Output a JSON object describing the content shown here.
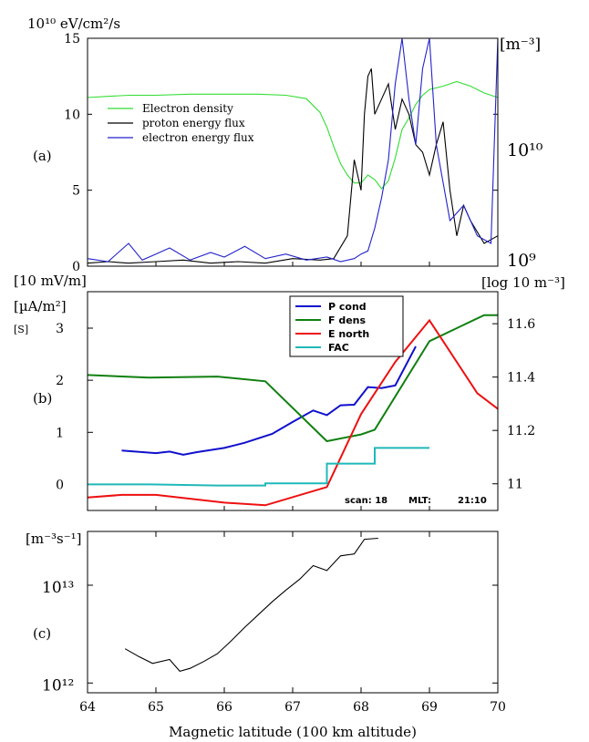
{
  "chart_data": [
    {
      "panel_label": "(a)",
      "type": "line",
      "y_unit_left": "10¹⁰ eV/cm²/s",
      "y_unit_right": "[m⁻³]",
      "ylim_left": [
        0,
        15
      ],
      "yticks_left": [
        "0",
        "5",
        "10",
        "15"
      ],
      "yticks_right": [
        "10⁹",
        "10¹⁰"
      ],
      "ylim_right_log": [
        9,
        11
      ],
      "xlim": [
        64,
        70
      ],
      "legend": [
        "Electron density",
        "proton energy flux",
        "electron energy flux"
      ],
      "series": [
        {
          "name": "Electron density",
          "color": "#33dd33",
          "axis": "right_log",
          "x": [
            64.0,
            64.3,
            64.6,
            65.0,
            65.5,
            66.0,
            66.5,
            66.9,
            67.2,
            67.4,
            67.5,
            67.6,
            67.7,
            67.8,
            67.9,
            68.0,
            68.1,
            68.2,
            68.3,
            68.4,
            68.5,
            68.6,
            68.7,
            68.8,
            68.9,
            69.0,
            69.2,
            69.4,
            69.6,
            69.8,
            70.0
          ],
          "values": [
            10.48,
            10.49,
            10.5,
            10.5,
            10.51,
            10.51,
            10.51,
            10.5,
            10.47,
            10.35,
            10.22,
            10.05,
            9.9,
            9.8,
            9.73,
            9.73,
            9.8,
            9.76,
            9.68,
            9.75,
            9.95,
            10.2,
            10.3,
            10.42,
            10.5,
            10.55,
            10.58,
            10.62,
            10.58,
            10.52,
            10.48
          ]
        },
        {
          "name": "proton energy flux",
          "color": "#000000",
          "axis": "left",
          "x": [
            64.0,
            64.3,
            64.6,
            65.0,
            65.4,
            65.8,
            66.2,
            66.6,
            67.0,
            67.4,
            67.6,
            67.8,
            67.9,
            68.0,
            68.05,
            68.1,
            68.15,
            68.2,
            68.3,
            68.4,
            68.5,
            68.6,
            68.7,
            68.8,
            68.9,
            69.0,
            69.1,
            69.2,
            69.3,
            69.4,
            69.5,
            69.6,
            69.8,
            70.0
          ],
          "values": [
            0.2,
            0.3,
            0.2,
            0.3,
            0.4,
            0.2,
            0.3,
            0.2,
            0.5,
            0.4,
            0.5,
            2.0,
            7.0,
            5.0,
            10.0,
            12.5,
            13.0,
            10.0,
            11.0,
            12.0,
            9.0,
            11.0,
            10.0,
            8.0,
            7.5,
            6.0,
            8.0,
            9.5,
            5.0,
            2.0,
            4.0,
            3.0,
            1.5,
            2.0
          ]
        },
        {
          "name": "electron energy flux",
          "color": "#2222cc",
          "axis": "left",
          "x": [
            64.0,
            64.3,
            64.6,
            64.8,
            65.0,
            65.2,
            65.5,
            65.8,
            66.0,
            66.3,
            66.6,
            66.9,
            67.2,
            67.5,
            67.7,
            67.9,
            68.0,
            68.1,
            68.2,
            68.3,
            68.4,
            68.5,
            68.6,
            68.7,
            68.8,
            68.9,
            69.0,
            69.1,
            69.3,
            69.5,
            69.7,
            69.9,
            70.0
          ],
          "values": [
            0.5,
            0.3,
            1.5,
            0.4,
            0.8,
            1.2,
            0.4,
            0.9,
            0.6,
            1.3,
            0.5,
            0.8,
            0.4,
            0.6,
            0.3,
            0.5,
            0.8,
            1.0,
            2.5,
            4.5,
            7.0,
            12.0,
            15.0,
            11.0,
            8.0,
            13.0,
            15.0,
            8.0,
            3.0,
            4.0,
            2.0,
            1.5,
            15.0
          ]
        }
      ]
    },
    {
      "panel_label": "(b)",
      "type": "line",
      "y_unit_left": [
        "[10 mV/m]",
        "[µA/m²]",
        "[S]"
      ],
      "y_unit_right": "[log 10 m⁻³]",
      "ylim_left": [
        -0.5,
        3.7
      ],
      "yticks_left": [
        "0",
        "1",
        "2",
        "3"
      ],
      "ylim_right": [
        10.9,
        11.72
      ],
      "yticks_right": [
        "11",
        "11.2",
        "11.4",
        "11.6"
      ],
      "xlim": [
        64,
        70
      ],
      "legend": [
        "P cond",
        "F dens",
        "E north",
        "FAC"
      ],
      "annotations": [
        "scan: 18",
        "MLT:",
        "21:10"
      ],
      "series": [
        {
          "name": "P cond",
          "color": "#1010cc",
          "axis": "left",
          "x": [
            64.5,
            65.0,
            65.2,
            65.4,
            65.6,
            66.0,
            66.3,
            66.7,
            67.0,
            67.3,
            67.5,
            67.7,
            67.9,
            68.1,
            68.3,
            68.5,
            68.8
          ],
          "values": [
            0.65,
            0.6,
            0.63,
            0.57,
            0.62,
            0.7,
            0.8,
            0.97,
            1.2,
            1.42,
            1.33,
            1.52,
            1.53,
            1.87,
            1.85,
            1.9,
            2.65
          ]
        },
        {
          "name": "F dens",
          "color": "#108010",
          "axis": "left",
          "x": [
            64.0,
            64.9,
            65.9,
            66.6,
            67.5,
            68.0,
            68.2,
            69.0,
            69.8,
            70.0
          ],
          "values": [
            2.1,
            2.05,
            2.07,
            1.98,
            0.83,
            0.96,
            1.05,
            2.75,
            3.25,
            3.25
          ]
        },
        {
          "name": "E north",
          "color": "#ee1010",
          "axis": "left",
          "x": [
            64.0,
            64.5,
            65.0,
            66.0,
            66.6,
            67.5,
            68.0,
            68.5,
            69.0,
            69.7,
            70.0
          ],
          "values": [
            -0.25,
            -0.2,
            -0.2,
            -0.35,
            -0.4,
            -0.05,
            1.35,
            2.35,
            3.15,
            1.75,
            1.45
          ]
        },
        {
          "name": "FAC",
          "color": "#20b8b8",
          "axis": "left",
          "x": [
            64.0,
            64.9,
            65.9,
            66.6,
            66.6,
            67.5,
            67.5,
            68.2,
            68.2,
            69.0
          ],
          "values": [
            0.0,
            0.0,
            -0.02,
            -0.02,
            0.02,
            0.02,
            0.4,
            0.4,
            0.7,
            0.7
          ]
        }
      ]
    },
    {
      "panel_label": "(c)",
      "type": "line",
      "y_unit_left": "[m⁻³s⁻¹]",
      "ylim_log": [
        11.9,
        13.55
      ],
      "yticks": [
        "10¹²",
        "10¹³"
      ],
      "xlim": [
        64,
        70
      ],
      "xticks": [
        "64",
        "65",
        "66",
        "67",
        "68",
        "69",
        "70"
      ],
      "xlabel": "Magnetic latitude (100 km altitude)",
      "series": [
        {
          "color": "#000000",
          "x": [
            64.55,
            64.75,
            64.95,
            65.2,
            65.35,
            65.5,
            65.7,
            65.9,
            66.1,
            66.3,
            66.5,
            66.7,
            66.9,
            67.1,
            67.3,
            67.5,
            67.7,
            67.9,
            68.05,
            68.25
          ],
          "values": [
            12.35,
            12.27,
            12.2,
            12.24,
            12.12,
            12.15,
            12.22,
            12.3,
            12.43,
            12.57,
            12.7,
            12.83,
            12.95,
            13.06,
            13.2,
            13.15,
            13.3,
            13.32,
            13.47,
            13.48
          ]
        }
      ]
    }
  ]
}
